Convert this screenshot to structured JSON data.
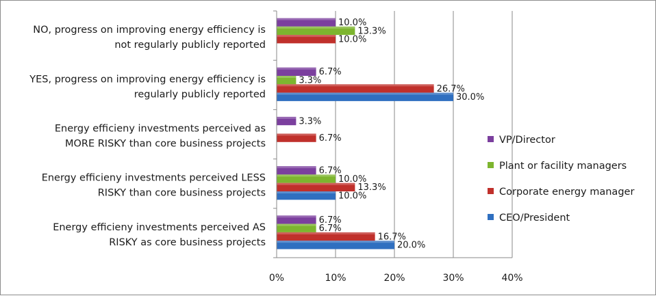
{
  "chart_data": {
    "type": "bar",
    "orientation": "horizontal",
    "categories": [
      [
        "NO, progress on improving energy efficiency is",
        "not regularly publicly reported"
      ],
      [
        "YES, progress on improving energy efficiency is",
        "regularly publicly reported"
      ],
      [
        "Energy efficieny investments perceived as",
        "MORE RISKY than core business projects"
      ],
      [
        "Energy efficieny investments perceived LESS",
        "RISKY than core business projects"
      ],
      [
        "Energy efficieny investments perceived AS",
        "RISKY as core business projects"
      ]
    ],
    "series": [
      {
        "name": "VP/Director",
        "color": "#7b3f9e",
        "values": [
          10.0,
          6.7,
          3.3,
          6.7,
          6.7
        ],
        "labels": [
          "10.0%",
          "6.7%",
          "3.3%",
          "6.7%",
          "6.7%"
        ]
      },
      {
        "name": "Plant or facility managers",
        "color": "#7db52f",
        "values": [
          13.3,
          3.3,
          null,
          10.0,
          6.7
        ],
        "labels": [
          "13.3%",
          "3.3%",
          "",
          "10.0%",
          "6.7%"
        ]
      },
      {
        "name": "Corporate energy manager",
        "color": "#c0302b",
        "values": [
          10.0,
          26.7,
          6.7,
          13.3,
          16.7
        ],
        "labels": [
          "10.0%",
          "26.7%",
          "6.7%",
          "13.3%",
          "16.7%"
        ]
      },
      {
        "name": "CEO/President",
        "color": "#2f6fc0",
        "values": [
          null,
          30.0,
          null,
          10.0,
          20.0
        ],
        "labels": [
          "",
          "30.0%",
          "",
          "10.0%",
          "20.0%"
        ]
      }
    ],
    "x_ticks": [
      "0%",
      "10%",
      "20%",
      "30%",
      "40%"
    ],
    "xlim": [
      0,
      40
    ],
    "grid": true,
    "legend": "right"
  }
}
